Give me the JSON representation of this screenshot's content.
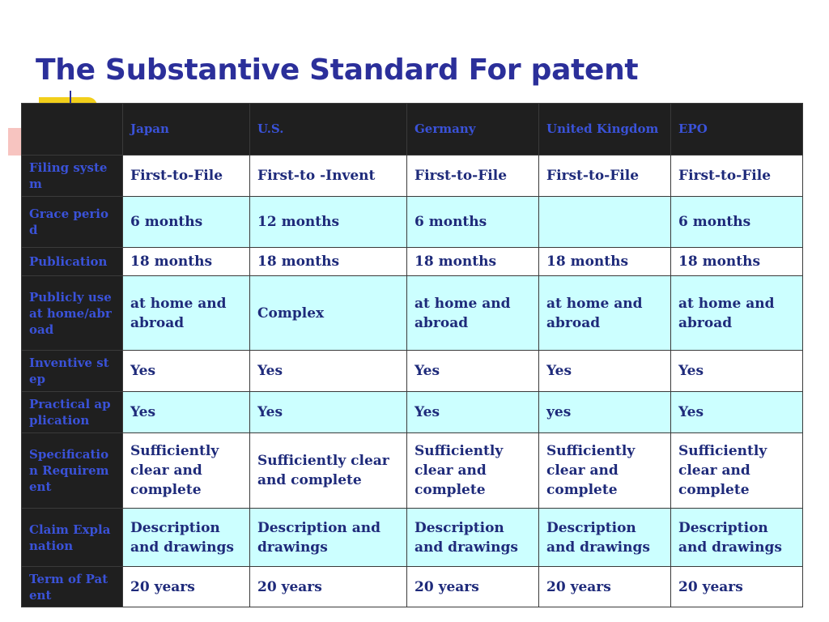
{
  "title": "The Substantive Standard For patent",
  "colors": {
    "title": "#2b2f9a",
    "header_bg": "#1f1f1f",
    "header_text": "#3a52d8",
    "cell_text": "#1e2a7a",
    "alt_row_bg": "#ccffff",
    "deco_yellow": "#f2cf1a",
    "deco_red": "#f7c4c0"
  },
  "table": {
    "corner": "",
    "columns": [
      "Japan",
      "U.S.",
      "Germany",
      "United Kingdom",
      "EPO"
    ],
    "rows": [
      {
        "label": "Filing system",
        "cells": [
          "First-to-File",
          "First-to -Invent",
          "First-to-File",
          "First-to-File",
          "First-to-File"
        ]
      },
      {
        "label": "Grace period",
        "cells": [
          "6  months",
          "12 months",
          "6  months",
          "",
          "6  months"
        ]
      },
      {
        "label": "Publication",
        "cells": [
          "18 months",
          "18 months",
          "18 months",
          "18 months",
          "18 months"
        ]
      },
      {
        "label": "Publicly use at home/abroad",
        "cells": [
          "at home and abroad",
          "Complex",
          "at home and abroad",
          "at home and abroad",
          "at home and abroad"
        ]
      },
      {
        "label": "Inventive step",
        "cells": [
          "Yes",
          "Yes",
          "Yes",
          "Yes",
          "Yes"
        ]
      },
      {
        "label": "Practical application",
        "cells": [
          "Yes",
          "Yes",
          "Yes",
          "yes",
          "Yes"
        ]
      },
      {
        "label": "Specification Requirement",
        "cells": [
          "Sufficiently clear and complete",
          "Sufficiently clear and complete",
          "Sufficiently clear and complete",
          "Sufficiently clear and complete",
          "Sufficiently clear and complete"
        ]
      },
      {
        "label": "Claim Explanation",
        "cells": [
          "Description and drawings",
          "Description and drawings",
          "Description and drawings",
          "Description and drawings",
          "Description and drawings"
        ]
      },
      {
        "label": "Term of Patent",
        "cells": [
          "20 years",
          "20 years",
          "20 years",
          "20 years",
          "20 years"
        ]
      }
    ]
  }
}
